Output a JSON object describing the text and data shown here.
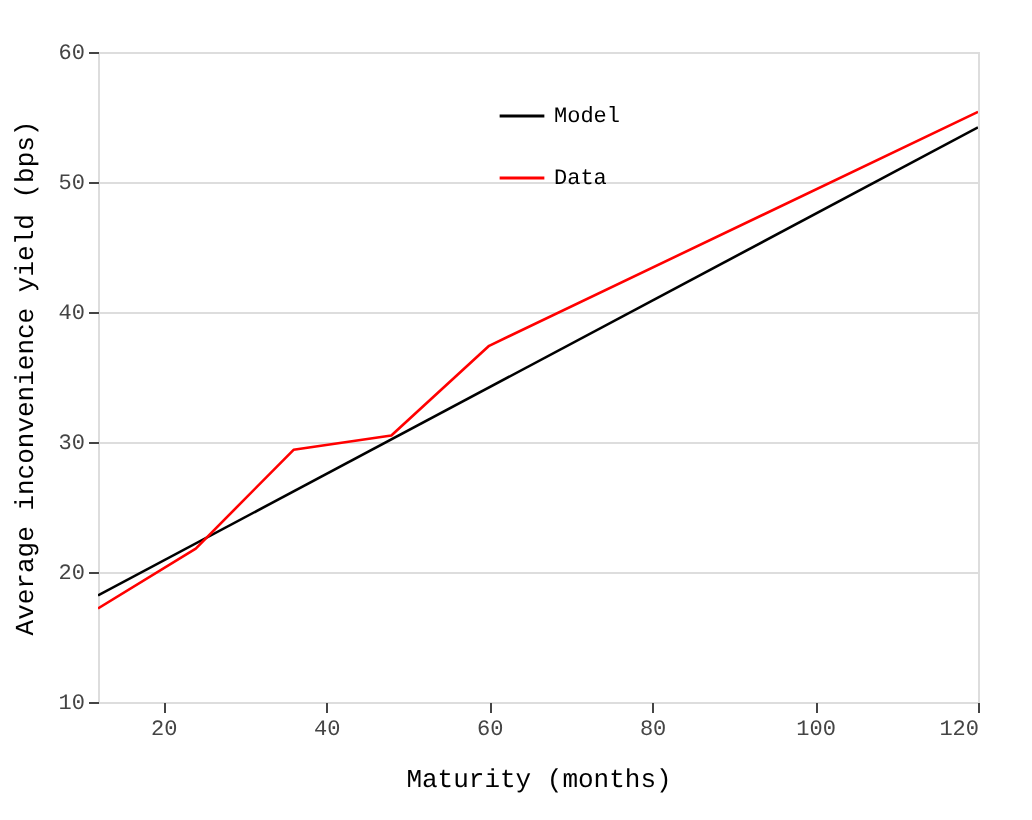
{
  "chart_data": {
    "type": "line",
    "xlabel": "Maturity (months)",
    "ylabel": "Average inconvenience yield (bps)",
    "x": [
      12,
      24,
      36,
      48,
      60,
      120
    ],
    "series": [
      {
        "name": "Model",
        "color": "#000000",
        "x": [
          12,
          120
        ],
        "values": [
          18.2,
          54.2
        ]
      },
      {
        "name": "Data",
        "color": "#ff0000",
        "values": [
          17.2,
          21.8,
          29.4,
          30.5,
          37.4,
          55.4
        ]
      }
    ],
    "xlim": [
      12,
      120
    ],
    "xticks": [
      20,
      40,
      60,
      80,
      100,
      120
    ],
    "ylim": [
      10,
      60
    ],
    "yticks": [
      10,
      20,
      30,
      40,
      50,
      60
    ],
    "grid": "y",
    "legend": "top",
    "line_style": "solid",
    "marker": "none"
  }
}
